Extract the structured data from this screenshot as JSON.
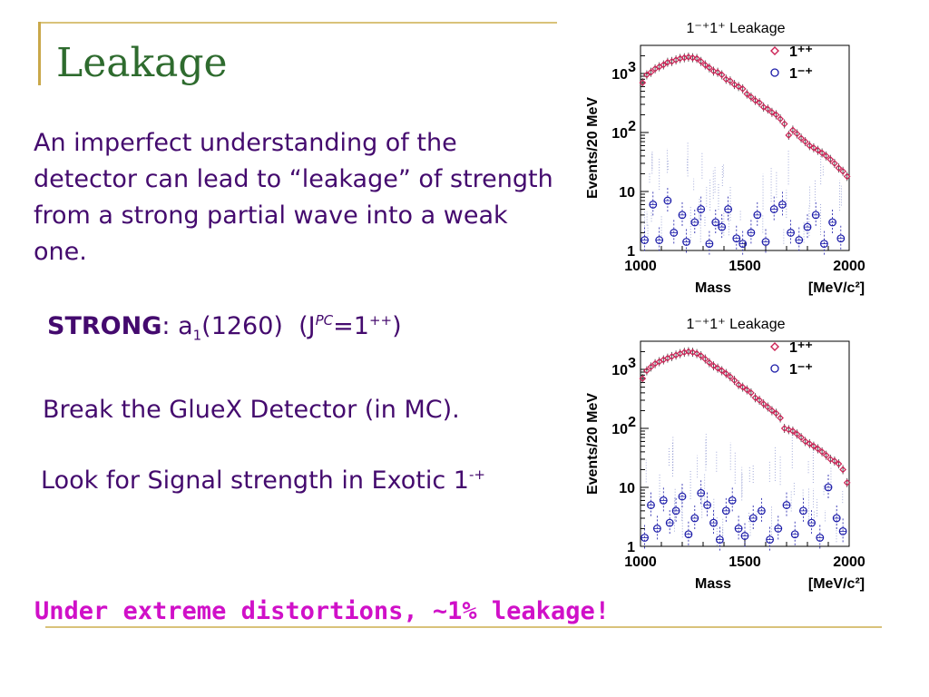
{
  "slide": {
    "title": "Leakage",
    "paragraph": "An imperfect understanding of the detector can lead to “leakage” of strength from a strong partial wave into a weak one.",
    "strong": {
      "label": "STRONG",
      "colon": ":",
      "a": "a",
      "a_sub": "1",
      "mass": "(1260)",
      "jpc_open": "(J",
      "jpc_sup": "PC",
      "jpc_eq": "=1",
      "jpc_eq_sup": "++",
      "jpc_close": ")"
    },
    "break_text": "Break the GlueX Detector (in MC).",
    "look": {
      "text": "Look for Signal strength in Exotic 1",
      "sup": "-+"
    },
    "bottom_text": "Under extreme distortions, ~1% leakage!"
  },
  "colors": {
    "title": "#2e6b2e",
    "body_text": "#440a6e",
    "highlight": "#d010c8",
    "accent_line": "#c9a84a",
    "series_1pp": "#cc2255",
    "series_1mp": "#1a1aa8"
  },
  "chart_data": [
    {
      "type": "scatter",
      "title": "1⁻⁺1⁺ Leakage",
      "xlabel": "Mass",
      "xunit": "[MeV/c²]",
      "ylabel": "Events/20 MeV",
      "xlim": [
        1000,
        2000
      ],
      "ylim": [
        1,
        3000
      ],
      "yscale": "log",
      "x_ticks": [
        "1000",
        "1500",
        "2000"
      ],
      "y_ticks": [
        {
          "v": 1,
          "label": "1"
        },
        {
          "v": 10,
          "label": "10"
        },
        {
          "v": 100,
          "label": "10",
          "sup": "2"
        },
        {
          "v": 1000,
          "label": "10",
          "sup": "3"
        }
      ],
      "legend": [
        "1⁺⁺",
        "1⁻⁺"
      ],
      "series": [
        {
          "name": "1⁺⁺",
          "marker": "diamond",
          "x": [
            1010,
            1030,
            1050,
            1070,
            1090,
            1110,
            1130,
            1150,
            1170,
            1190,
            1210,
            1230,
            1250,
            1270,
            1290,
            1310,
            1330,
            1350,
            1370,
            1390,
            1410,
            1430,
            1450,
            1470,
            1490,
            1510,
            1530,
            1550,
            1570,
            1590,
            1610,
            1630,
            1650,
            1670,
            1690,
            1710,
            1730,
            1750,
            1770,
            1790,
            1810,
            1830,
            1850,
            1870,
            1890,
            1910,
            1930,
            1950,
            1970,
            1990
          ],
          "y": [
            700,
            950,
            1050,
            1200,
            1300,
            1400,
            1550,
            1600,
            1700,
            1800,
            1850,
            1900,
            1850,
            1800,
            1600,
            1400,
            1250,
            1100,
            1050,
            950,
            800,
            750,
            650,
            600,
            550,
            450,
            400,
            350,
            320,
            270,
            250,
            220,
            200,
            170,
            140,
            90,
            110,
            95,
            80,
            70,
            60,
            55,
            50,
            45,
            40,
            35,
            30,
            25,
            22,
            18
          ]
        },
        {
          "name": "1⁻⁺",
          "marker": "circle",
          "x": [
            1020,
            1060,
            1090,
            1130,
            1160,
            1200,
            1220,
            1260,
            1290,
            1330,
            1360,
            1390,
            1420,
            1460,
            1490,
            1530,
            1560,
            1600,
            1640,
            1680,
            1720,
            1760,
            1800,
            1840,
            1880,
            1920,
            1960
          ],
          "y": [
            1.5,
            6,
            1.5,
            7,
            2,
            4,
            1.4,
            3,
            5,
            1.3,
            3,
            2.5,
            5,
            1.6,
            1.3,
            2,
            4,
            1.4,
            5,
            6,
            2,
            1.5,
            2.5,
            4,
            1.3,
            3,
            1.6
          ]
        }
      ]
    },
    {
      "type": "scatter",
      "title": "1⁻⁺1⁺ Leakage",
      "xlabel": "Mass",
      "xunit": "[MeV/c²]",
      "ylabel": "Events/20 MeV",
      "xlim": [
        1000,
        2000
      ],
      "ylim": [
        1,
        3000
      ],
      "yscale": "log",
      "x_ticks": [
        "1000",
        "1500",
        "2000"
      ],
      "y_ticks": [
        {
          "v": 1,
          "label": "1"
        },
        {
          "v": 10,
          "label": "10"
        },
        {
          "v": 100,
          "label": "10",
          "sup": "2"
        },
        {
          "v": 1000,
          "label": "10",
          "sup": "3"
        }
      ],
      "legend": [
        "1⁺⁺",
        "1⁻⁺"
      ],
      "series": [
        {
          "name": "1⁺⁺",
          "marker": "diamond",
          "x": [
            1010,
            1030,
            1050,
            1070,
            1090,
            1110,
            1130,
            1150,
            1170,
            1190,
            1210,
            1230,
            1250,
            1270,
            1290,
            1310,
            1330,
            1350,
            1370,
            1390,
            1410,
            1430,
            1450,
            1470,
            1490,
            1510,
            1530,
            1550,
            1570,
            1590,
            1610,
            1630,
            1650,
            1670,
            1690,
            1710,
            1730,
            1750,
            1770,
            1790,
            1810,
            1830,
            1850,
            1870,
            1890,
            1910,
            1930,
            1950,
            1970,
            1990
          ],
          "y": [
            700,
            950,
            1100,
            1250,
            1350,
            1450,
            1550,
            1650,
            1750,
            1850,
            1950,
            2000,
            1950,
            1850,
            1700,
            1500,
            1300,
            1150,
            1050,
            950,
            850,
            750,
            650,
            550,
            500,
            450,
            400,
            330,
            300,
            260,
            230,
            200,
            180,
            150,
            100,
            95,
            90,
            80,
            70,
            60,
            55,
            50,
            45,
            40,
            35,
            30,
            28,
            25,
            20,
            12
          ]
        },
        {
          "name": "1⁻⁺",
          "marker": "circle",
          "x": [
            1020,
            1050,
            1080,
            1110,
            1140,
            1170,
            1200,
            1230,
            1260,
            1290,
            1320,
            1350,
            1380,
            1410,
            1440,
            1470,
            1500,
            1540,
            1580,
            1620,
            1660,
            1700,
            1740,
            1780,
            1820,
            1860,
            1900,
            1940,
            1970
          ],
          "y": [
            1.4,
            5,
            2,
            6,
            2.5,
            4,
            7,
            1.6,
            3,
            8,
            5,
            2.5,
            1.3,
            4,
            6,
            2,
            1.5,
            3,
            4,
            1.3,
            2,
            5,
            1.6,
            4,
            2.5,
            1.4,
            10,
            3,
            1.8
          ]
        }
      ]
    }
  ]
}
